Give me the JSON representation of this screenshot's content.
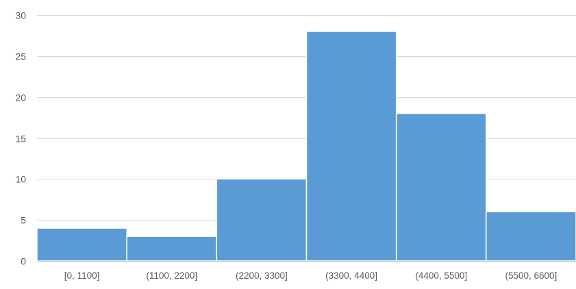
{
  "chart_data": {
    "type": "bar",
    "categories": [
      "[0, 1100]",
      "(1100, 2200]",
      "(2200, 3300]",
      "(3300, 4400]",
      "(4400, 5500]",
      "(5500, 6600]"
    ],
    "values": [
      4,
      3,
      10,
      28,
      18,
      6
    ],
    "ylim": [
      0,
      30
    ],
    "yticks": [
      0,
      5,
      10,
      15,
      20,
      25,
      30
    ],
    "grid": true,
    "legend": "none",
    "title": "",
    "xlabel": "",
    "ylabel": "",
    "colors": {
      "bar": "#5B9BD5",
      "bar_edge": "#ffffff",
      "grid": "#d9d9d9",
      "axis": "#bfbfbf",
      "text": "#595959"
    }
  }
}
